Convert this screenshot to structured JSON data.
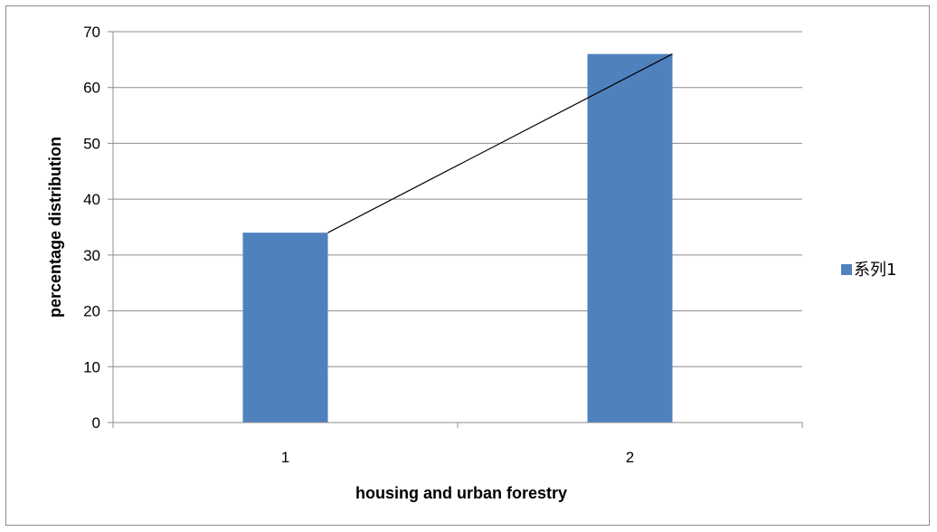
{
  "chart_data": {
    "type": "bar",
    "categories": [
      "1",
      "2"
    ],
    "series": [
      {
        "name": "系列1",
        "values": [
          34,
          66
        ],
        "color": "#4f81bd"
      }
    ],
    "trendline": {
      "values": [
        34,
        66
      ],
      "color": "#000000"
    },
    "xlabel": "housing and urban forestry",
    "ylabel": "percentage distribution",
    "ylim": [
      0,
      70
    ],
    "yticks": [
      "0",
      "10",
      "20",
      "30",
      "40",
      "50",
      "60",
      "70"
    ],
    "grid": true,
    "legend": "right",
    "gridline_color": "#8c8c8c"
  }
}
